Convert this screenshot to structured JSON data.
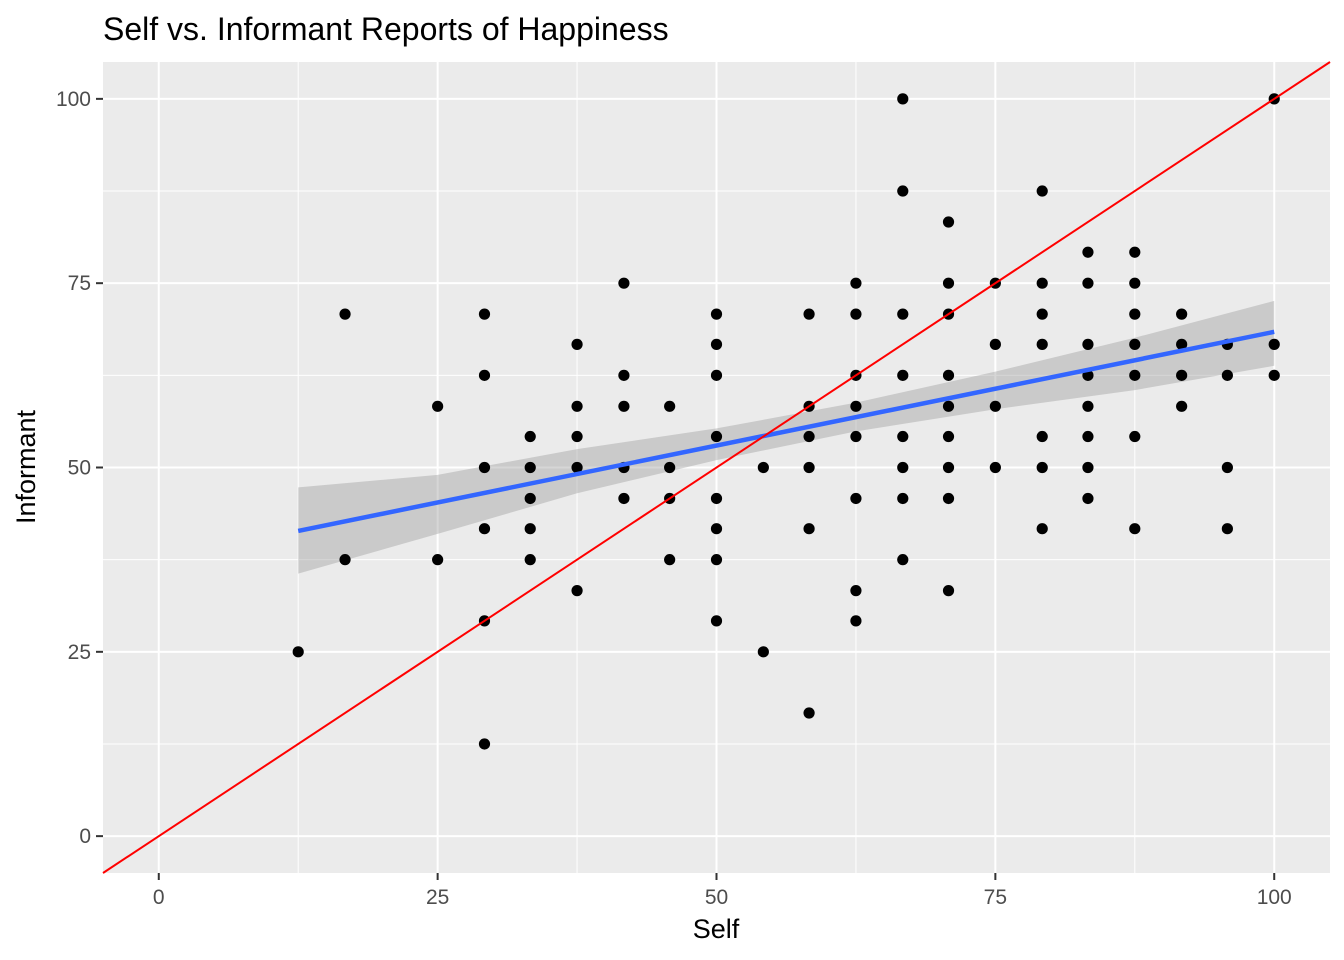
{
  "chart_data": {
    "type": "scatter",
    "title": "Self vs. Informant Reports of Happiness",
    "xlabel": "Self",
    "ylabel": "Informant",
    "xlim": [
      -5,
      105
    ],
    "ylim": [
      -5,
      105
    ],
    "xticks": [
      0,
      25,
      50,
      75,
      100
    ],
    "yticks": [
      0,
      25,
      50,
      75,
      100
    ],
    "grid": true,
    "background": "#ebebeb",
    "point_color": "#000000",
    "identity_line": {
      "from": [
        -5,
        -5
      ],
      "to": [
        105,
        105
      ],
      "color": "#ff0000"
    },
    "regression": {
      "x_start": 12.5,
      "y_start": 41.4,
      "x_end": 100,
      "y_end": 68.4,
      "color": "#3366ff",
      "ci_band": [
        {
          "x": 12.5,
          "lower": 35.6,
          "upper": 47.3
        },
        {
          "x": 25,
          "lower": 41.0,
          "upper": 49.0
        },
        {
          "x": 37.5,
          "lower": 46.5,
          "upper": 52.5
        },
        {
          "x": 50,
          "lower": 51.0,
          "upper": 55.3
        },
        {
          "x": 62.5,
          "lower": 54.9,
          "upper": 58.8
        },
        {
          "x": 75,
          "lower": 57.9,
          "upper": 63.0
        },
        {
          "x": 87.5,
          "lower": 60.5,
          "upper": 67.6
        },
        {
          "x": 100,
          "lower": 63.8,
          "upper": 72.6
        }
      ],
      "band_color": "#999999"
    },
    "points": [
      [
        12.5,
        25
      ],
      [
        16.7,
        70.8
      ],
      [
        16.7,
        37.5
      ],
      [
        25,
        58.3
      ],
      [
        25,
        37.5
      ],
      [
        29.2,
        70.8
      ],
      [
        29.2,
        62.5
      ],
      [
        29.2,
        50
      ],
      [
        29.2,
        41.7
      ],
      [
        29.2,
        29.2
      ],
      [
        29.2,
        12.5
      ],
      [
        33.3,
        54.2
      ],
      [
        33.3,
        50
      ],
      [
        33.3,
        45.8
      ],
      [
        33.3,
        41.7
      ],
      [
        33.3,
        37.5
      ],
      [
        37.5,
        66.7
      ],
      [
        37.5,
        58.3
      ],
      [
        37.5,
        54.2
      ],
      [
        37.5,
        50
      ],
      [
        37.5,
        33.3
      ],
      [
        41.7,
        75
      ],
      [
        41.7,
        62.5
      ],
      [
        41.7,
        58.3
      ],
      [
        41.7,
        50
      ],
      [
        41.7,
        45.8
      ],
      [
        45.8,
        58.3
      ],
      [
        45.8,
        50
      ],
      [
        45.8,
        45.8
      ],
      [
        45.8,
        37.5
      ],
      [
        50,
        70.8
      ],
      [
        50,
        66.7
      ],
      [
        50,
        62.5
      ],
      [
        50,
        54.2
      ],
      [
        50,
        45.8
      ],
      [
        50,
        41.7
      ],
      [
        50,
        37.5
      ],
      [
        50,
        29.2
      ],
      [
        54.2,
        50
      ],
      [
        54.2,
        25
      ],
      [
        58.3,
        70.8
      ],
      [
        58.3,
        58.3
      ],
      [
        58.3,
        54.2
      ],
      [
        58.3,
        50
      ],
      [
        58.3,
        41.7
      ],
      [
        58.3,
        16.7
      ],
      [
        62.5,
        75
      ],
      [
        62.5,
        70.8
      ],
      [
        62.5,
        62.5
      ],
      [
        62.5,
        58.3
      ],
      [
        62.5,
        54.2
      ],
      [
        62.5,
        45.8
      ],
      [
        62.5,
        33.3
      ],
      [
        62.5,
        29.2
      ],
      [
        66.7,
        100
      ],
      [
        66.7,
        87.5
      ],
      [
        66.7,
        70.8
      ],
      [
        66.7,
        62.5
      ],
      [
        66.7,
        54.2
      ],
      [
        66.7,
        50
      ],
      [
        66.7,
        45.8
      ],
      [
        66.7,
        37.5
      ],
      [
        70.8,
        83.3
      ],
      [
        70.8,
        75
      ],
      [
        70.8,
        70.8
      ],
      [
        70.8,
        62.5
      ],
      [
        70.8,
        58.3
      ],
      [
        70.8,
        54.2
      ],
      [
        70.8,
        50
      ],
      [
        70.8,
        45.8
      ],
      [
        70.8,
        33.3
      ],
      [
        75,
        75
      ],
      [
        75,
        66.7
      ],
      [
        75,
        58.3
      ],
      [
        75,
        50
      ],
      [
        79.2,
        87.5
      ],
      [
        79.2,
        75
      ],
      [
        79.2,
        70.8
      ],
      [
        79.2,
        66.7
      ],
      [
        79.2,
        54.2
      ],
      [
        79.2,
        50
      ],
      [
        79.2,
        41.7
      ],
      [
        83.3,
        79.2
      ],
      [
        83.3,
        75
      ],
      [
        83.3,
        66.7
      ],
      [
        83.3,
        62.5
      ],
      [
        83.3,
        58.3
      ],
      [
        83.3,
        54.2
      ],
      [
        83.3,
        50
      ],
      [
        83.3,
        45.8
      ],
      [
        87.5,
        79.2
      ],
      [
        87.5,
        75
      ],
      [
        87.5,
        70.8
      ],
      [
        87.5,
        66.7
      ],
      [
        87.5,
        62.5
      ],
      [
        87.5,
        54.2
      ],
      [
        87.5,
        41.7
      ],
      [
        91.7,
        70.8
      ],
      [
        91.7,
        66.7
      ],
      [
        91.7,
        62.5
      ],
      [
        91.7,
        58.3
      ],
      [
        95.8,
        66.7
      ],
      [
        95.8,
        62.5
      ],
      [
        95.8,
        50
      ],
      [
        95.8,
        41.7
      ],
      [
        100,
        100
      ],
      [
        100,
        66.7
      ],
      [
        100,
        62.5
      ]
    ]
  }
}
